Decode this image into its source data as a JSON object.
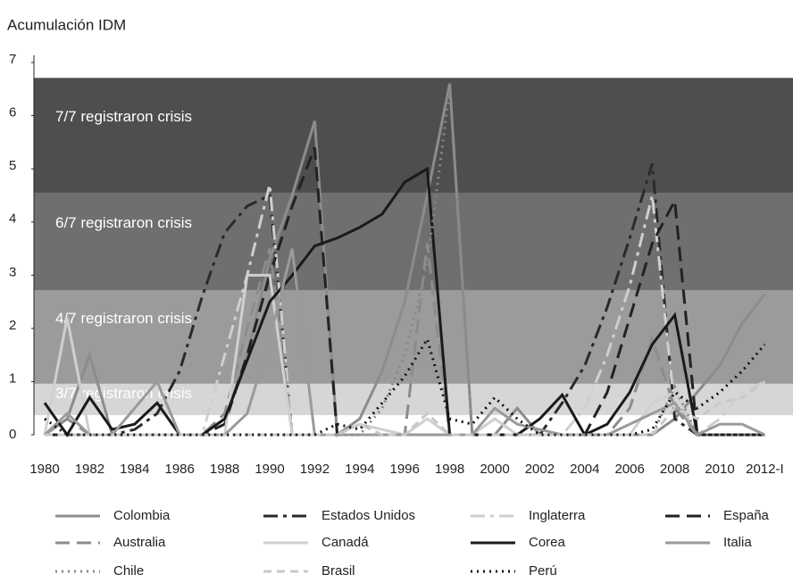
{
  "chart_data": {
    "type": "line",
    "title": "Acumulación IDM",
    "categories": [
      "1980",
      null,
      "1982",
      null,
      "1984",
      null,
      "1986",
      null,
      "1988",
      null,
      "1990",
      null,
      "1992",
      null,
      "1994",
      null,
      "1996",
      null,
      "1998",
      null,
      "2000",
      null,
      "2002",
      null,
      "2004",
      null,
      "2006",
      null,
      "2008",
      null,
      "2010",
      null,
      "2012-I"
    ],
    "ylim": [
      0,
      7
    ],
    "yticks": [
      0,
      1,
      2,
      3,
      4,
      5,
      6,
      7
    ],
    "grid": false,
    "bands": [
      {
        "label": "3/7 registraron crisis",
        "from": 0.37,
        "to": 0.96,
        "color": "#d6d6d6"
      },
      {
        "label": "4/7 registraron crisis",
        "from": 0.96,
        "to": 2.72,
        "color": "#9b9b9b"
      },
      {
        "label": "6/7 registraron crisis",
        "from": 2.72,
        "to": 4.55,
        "color": "#6f6f6f"
      },
      {
        "label": "7/7 registraron crisis",
        "from": 4.55,
        "to": 6.71,
        "color": "#4e4e4e"
      }
    ],
    "series": [
      {
        "name": "Colombia",
        "color": "#8c8c8c",
        "style": "solid",
        "values": [
          0,
          0.3,
          1.5,
          0,
          0,
          0,
          0,
          0,
          0.3,
          1.5,
          3.3,
          4.5,
          5.9,
          0,
          0.3,
          1.2,
          2.5,
          4.5,
          6.6,
          0,
          0,
          0.5,
          0,
          0,
          0,
          0,
          0,
          0,
          0.3,
          0.8,
          1.3,
          2.1,
          2.65
        ]
      },
      {
        "name": "Estados Unidos",
        "color": "#2a2a2a",
        "style": "dashdot",
        "values": [
          0,
          0,
          0,
          0,
          0.1,
          0.4,
          1.2,
          2.6,
          3.8,
          4.3,
          4.5,
          0,
          0,
          0,
          0,
          0,
          0,
          0,
          0,
          0,
          0,
          0,
          0,
          0.6,
          1.3,
          2.4,
          3.7,
          5.1,
          0.3,
          0,
          0,
          0,
          0
        ]
      },
      {
        "name": "Inglaterra",
        "color": "#cfcfcf",
        "style": "dashdot",
        "values": [
          0,
          0,
          0,
          0,
          0,
          0,
          0,
          0,
          1.5,
          3.0,
          4.7,
          0,
          0,
          0,
          0,
          0,
          0,
          0,
          0,
          0,
          0,
          0,
          0,
          0,
          0.5,
          1.5,
          2.8,
          4.5,
          0.5,
          0,
          0.3,
          0.8,
          1.0
        ]
      },
      {
        "name": "España",
        "color": "#222222",
        "style": "longdash",
        "values": [
          0,
          0,
          0,
          0,
          0,
          0,
          0,
          0,
          0.2,
          1.5,
          3.0,
          4.3,
          5.4,
          0,
          0,
          0,
          0,
          0,
          0,
          0,
          0,
          0,
          0,
          0,
          0,
          0.8,
          2.2,
          3.6,
          4.4,
          0,
          0,
          0,
          0
        ]
      },
      {
        "name": "Australia",
        "color": "#8c8c8c",
        "style": "longdash",
        "values": [
          0,
          0.3,
          0,
          0,
          0,
          0,
          0,
          0,
          0.4,
          2.0,
          3.5,
          0,
          0,
          0,
          0,
          0,
          0,
          3.6,
          0,
          0,
          0,
          0,
          0,
          0,
          0,
          0,
          0.5,
          1.8,
          0.5,
          0,
          0,
          0,
          0
        ]
      },
      {
        "name": "Canadá",
        "color": "#d0d0d0",
        "style": "solid",
        "values": [
          0,
          2.2,
          0,
          0,
          0,
          0,
          0,
          0,
          0,
          3.0,
          3.0,
          0,
          0,
          0,
          0.2,
          0.1,
          0,
          0.3,
          0,
          0,
          0.3,
          0,
          0,
          0,
          0,
          0,
          0,
          0.6,
          0.8,
          0,
          0,
          0,
          0
        ]
      },
      {
        "name": "Corea",
        "color": "#1a1a1a",
        "style": "solid",
        "values": [
          0.6,
          0,
          0.7,
          0.1,
          0.2,
          0.6,
          0,
          0,
          0.3,
          1.4,
          2.5,
          3.0,
          3.55,
          3.7,
          3.9,
          4.15,
          4.75,
          5.0,
          0,
          0,
          0,
          0,
          0.3,
          0.75,
          0,
          0.2,
          0.8,
          1.7,
          2.25,
          0,
          0,
          0,
          0
        ]
      },
      {
        "name": "Italia",
        "color": "#9a9a9a",
        "style": "solid",
        "values": [
          0,
          0.4,
          0,
          0,
          0.5,
          1.0,
          0,
          0,
          0,
          0.4,
          1.8,
          3.5,
          0,
          0,
          0,
          0,
          0,
          0,
          0,
          0,
          0.5,
          0.2,
          0.1,
          0,
          0,
          0,
          0.2,
          0.4,
          0.6,
          0,
          0.2,
          0.2,
          0
        ]
      },
      {
        "name": "Chile",
        "color": "#888888",
        "style": "dot",
        "values": [
          0,
          0,
          0,
          0,
          0,
          0,
          0,
          0,
          0,
          0,
          0,
          0,
          0,
          0,
          0,
          0.5,
          1.5,
          3.2,
          6.5,
          0,
          0,
          0,
          0,
          0,
          0,
          0,
          0,
          0,
          0.9,
          0,
          0,
          0,
          0
        ]
      },
      {
        "name": "Brasil",
        "color": "#c8c8c8",
        "style": "dash",
        "values": [
          0,
          0,
          0,
          0,
          0,
          0,
          0,
          0,
          0,
          0,
          0,
          0,
          0,
          0,
          0.2,
          0,
          0,
          0.4,
          0,
          0,
          0,
          0,
          0,
          0,
          0,
          0,
          0,
          0,
          0.5,
          0.3,
          0.6,
          0.7,
          1.0
        ]
      },
      {
        "name": "Perú",
        "color": "#111111",
        "style": "dot",
        "values": [
          0.3,
          0,
          0,
          0,
          0,
          0,
          0,
          0,
          0,
          0,
          0,
          0,
          0,
          0.2,
          0.1,
          0.6,
          1.1,
          1.8,
          0.3,
          0.2,
          0.7,
          0.3,
          0,
          0,
          0,
          0,
          0,
          0.1,
          0.8,
          0.5,
          0.8,
          1.2,
          1.7
        ]
      }
    ]
  }
}
